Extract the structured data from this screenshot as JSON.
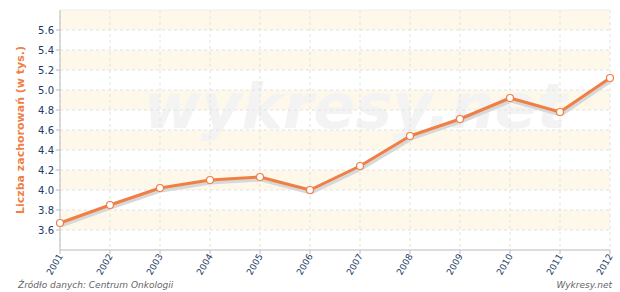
{
  "chart_data": {
    "type": "line",
    "y_label": "Liczba zachorowań (w tys.)",
    "source": "Źródło danych:  Centrum Onkologii",
    "credit": "Wykresy.net",
    "watermark": "wykresy.net",
    "categories": [
      "2001",
      "2002",
      "2003",
      "2004",
      "2005",
      "2006",
      "2007",
      "2008",
      "2009",
      "2010",
      "2011",
      "2012"
    ],
    "values": [
      3.67,
      3.85,
      4.02,
      4.1,
      4.13,
      4.0,
      4.24,
      4.54,
      4.71,
      4.92,
      4.78,
      5.12
    ],
    "color": "#f07f45",
    "marker": "circle",
    "ylim": [
      3.4,
      5.8
    ],
    "yticks": [
      3.6,
      3.8,
      {
        "value": 4,
        "label": "4.0"
      },
      4.2,
      4.4,
      4.6,
      4.8,
      {
        "value": 5,
        "label": "5.0"
      },
      5.2,
      5.4,
      5.6
    ],
    "grid": true
  }
}
